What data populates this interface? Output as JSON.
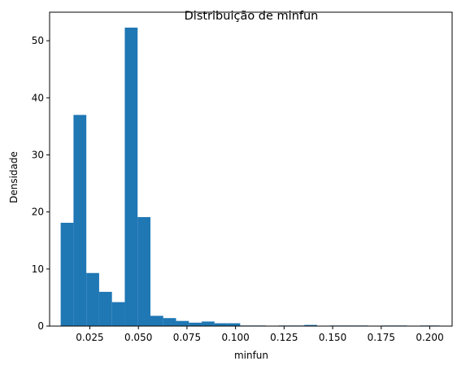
{
  "chart_data": {
    "type": "histogram",
    "title": "Distribuição de minfun",
    "xlabel": "minfun",
    "ylabel": "Densidade",
    "xlim": [
      0.0043,
      0.2115
    ],
    "ylim": [
      0,
      55
    ],
    "bar_color": "#1f77b4",
    "bin_edges": [
      0.01,
      0.0166,
      0.0232,
      0.0298,
      0.0364,
      0.043,
      0.0496,
      0.0562,
      0.0628,
      0.0694,
      0.076,
      0.0826,
      0.0892,
      0.0958,
      0.1024,
      0.109,
      0.1156,
      0.1222,
      0.1288,
      0.1354,
      0.142,
      0.1486,
      0.1552,
      0.1618,
      0.1684,
      0.175,
      0.1816,
      0.1882,
      0.1948,
      0.2014,
      0.205
    ],
    "values": [
      18.1,
      37.0,
      9.3,
      6.0,
      4.2,
      52.3,
      19.1,
      1.8,
      1.4,
      0.9,
      0.6,
      0.8,
      0.5,
      0.5,
      0.1,
      0.1,
      0.0,
      0.1,
      0.1,
      0.2,
      0.0,
      0.1,
      0.1,
      0.1,
      0.0,
      0.1,
      0.1,
      0.0,
      0.1,
      0.1
    ],
    "x_ticks": [
      {
        "value": 0.025,
        "label": "0.025"
      },
      {
        "value": 0.05,
        "label": "0.050"
      },
      {
        "value": 0.075,
        "label": "0.075"
      },
      {
        "value": 0.1,
        "label": "0.100"
      },
      {
        "value": 0.125,
        "label": "0.125"
      },
      {
        "value": 0.15,
        "label": "0.150"
      },
      {
        "value": 0.175,
        "label": "0.175"
      },
      {
        "value": 0.2,
        "label": "0.200"
      }
    ],
    "y_ticks": [
      {
        "value": 0,
        "label": "0"
      },
      {
        "value": 10,
        "label": "10"
      },
      {
        "value": 20,
        "label": "20"
      },
      {
        "value": 30,
        "label": "30"
      },
      {
        "value": 40,
        "label": "40"
      },
      {
        "value": 50,
        "label": "50"
      }
    ]
  }
}
